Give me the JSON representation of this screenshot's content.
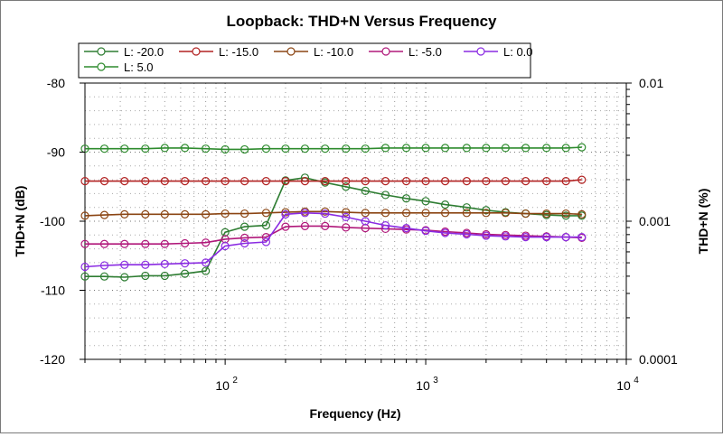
{
  "chart_data": {
    "type": "line",
    "title": "Loopback: THD+N Versus Frequency",
    "xlabel": "Frequency (Hz)",
    "ylabel": "THD+N (dB)",
    "y2label": "THD+N (%)",
    "xscale": "log",
    "xlim": [
      20,
      10000
    ],
    "ylim": [
      -120,
      -80
    ],
    "y2lim": [
      0.0001,
      0.01
    ],
    "x_ticks": [
      {
        "value": 100,
        "base": "10",
        "exp": "2"
      },
      {
        "value": 1000,
        "base": "10",
        "exp": "3"
      },
      {
        "value": 10000,
        "base": "10",
        "exp": "4"
      }
    ],
    "y_ticks": [
      "-80",
      "-90",
      "-100",
      "-110",
      "-120"
    ],
    "y2_ticks": [
      "0.01",
      "0.001",
      "0.0001"
    ],
    "grid": "dotted",
    "legend_position": "top",
    "x": [
      20,
      25,
      31.5,
      40,
      50,
      63,
      80,
      100,
      125,
      160,
      200,
      250,
      315,
      400,
      500,
      630,
      800,
      1000,
      1250,
      1600,
      2000,
      2500,
      3150,
      4000,
      5000,
      6000
    ],
    "series": [
      {
        "name": "L: -20.0",
        "color": "#2e7d32",
        "values": [
          -108.0,
          -108.0,
          -108.1,
          -107.9,
          -107.9,
          -107.6,
          -107.2,
          -101.6,
          -100.8,
          -100.6,
          -94.1,
          -93.7,
          -94.4,
          -95.0,
          -95.6,
          -96.2,
          -96.7,
          -97.1,
          -97.6,
          -98.0,
          -98.4,
          -98.7,
          -98.9,
          -99.1,
          -99.2,
          -99.2
        ]
      },
      {
        "name": "L: -15.0",
        "color": "#b22222",
        "values": [
          -94.2,
          -94.2,
          -94.2,
          -94.2,
          -94.2,
          -94.2,
          -94.2,
          -94.2,
          -94.2,
          -94.2,
          -94.2,
          -94.2,
          -94.2,
          -94.2,
          -94.2,
          -94.2,
          -94.2,
          -94.2,
          -94.2,
          -94.2,
          -94.2,
          -94.2,
          -94.2,
          -94.2,
          -94.2,
          -94.0
        ]
      },
      {
        "name": "L: -10.0",
        "color": "#8b4513",
        "values": [
          -99.2,
          -99.1,
          -99.0,
          -99.0,
          -99.0,
          -99.0,
          -99.0,
          -98.9,
          -98.9,
          -98.8,
          -98.7,
          -98.6,
          -98.6,
          -98.7,
          -98.8,
          -98.8,
          -98.8,
          -98.8,
          -98.8,
          -98.8,
          -98.8,
          -98.8,
          -98.9,
          -98.9,
          -98.9,
          -99.0
        ]
      },
      {
        "name": "L: -5.0",
        "color": "#b0187a",
        "values": [
          -103.3,
          -103.3,
          -103.3,
          -103.3,
          -103.3,
          -103.2,
          -103.1,
          -102.6,
          -102.4,
          -102.3,
          -100.8,
          -100.7,
          -100.7,
          -100.9,
          -101.0,
          -101.1,
          -101.2,
          -101.3,
          -101.5,
          -101.7,
          -101.9,
          -102.0,
          -102.1,
          -102.2,
          -102.3,
          -102.4
        ]
      },
      {
        "name": "L: 0.0",
        "color": "#8a2be2",
        "values": [
          -106.6,
          -106.4,
          -106.3,
          -106.3,
          -106.2,
          -106.1,
          -106.0,
          -103.6,
          -103.2,
          -103.0,
          -99.0,
          -98.8,
          -98.9,
          -99.4,
          -100.0,
          -100.6,
          -101.0,
          -101.4,
          -101.7,
          -101.9,
          -102.1,
          -102.2,
          -102.3,
          -102.3,
          -102.3,
          -102.3
        ]
      },
      {
        "name": "L: 5.0",
        "color": "#2e8b2e",
        "values": [
          -89.5,
          -89.5,
          -89.5,
          -89.5,
          -89.4,
          -89.4,
          -89.5,
          -89.6,
          -89.6,
          -89.5,
          -89.5,
          -89.5,
          -89.5,
          -89.5,
          -89.5,
          -89.4,
          -89.4,
          -89.4,
          -89.4,
          -89.4,
          -89.4,
          -89.4,
          -89.4,
          -89.4,
          -89.4,
          -89.3
        ]
      }
    ]
  }
}
